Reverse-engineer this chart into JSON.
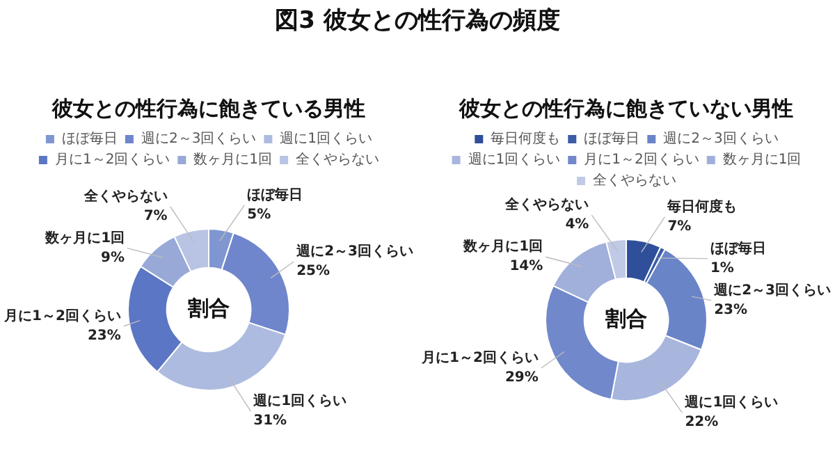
{
  "chart_data": [
    {
      "type": "other",
      "title": "図3 彼女との性行為の頻度"
    },
    {
      "type": "donut",
      "title": "彼女との性行為に飽きている男性",
      "categories": [
        "ほぼ毎日",
        "週に2～3回くらい",
        "週に1回くらい",
        "月に1～2回くらい",
        "数ヶ月に1回",
        "全くやらない"
      ],
      "values": [
        5,
        25,
        31,
        23,
        9,
        7
      ],
      "value_labels": [
        "5%",
        "25%",
        "31%",
        "23%",
        "9%",
        "7%"
      ],
      "colors": [
        "#7f96d0",
        "#6f86cc",
        "#aebbe0",
        "#5b76c4",
        "#98a9d8",
        "#b9c4e4"
      ],
      "legend": "top",
      "annotations": [
        "割合"
      ]
    },
    {
      "type": "donut",
      "title": "彼女との性行為に飽きていない男性",
      "categories": [
        "毎日何度も",
        "ほぼ毎日",
        "週に2～3回くらい",
        "週に1回くらい",
        "月に1～2回くらい",
        "数ヶ月に1回",
        "全くやらない"
      ],
      "values": [
        7,
        1,
        23,
        22,
        29,
        14,
        4
      ],
      "value_labels": [
        "7%",
        "1%",
        "23%",
        "22%",
        "29%",
        "14%",
        "4%"
      ],
      "colors": [
        "#2f4f9a",
        "#3c5ca8",
        "#6a84c8",
        "#a8b6de",
        "#7188cb",
        "#a0b0db",
        "#c0cae6"
      ],
      "legend": "top",
      "annotations": [
        "割合"
      ]
    }
  ]
}
